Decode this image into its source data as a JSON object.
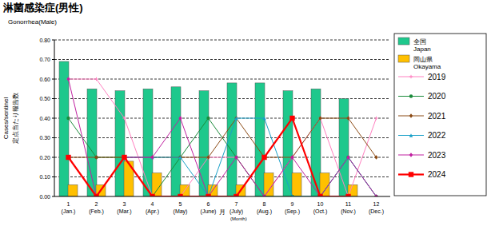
{
  "chart_data": {
    "type": "bar",
    "title": "淋菌感染症(男性)",
    "subtitle": "Gonorrhea(Male)",
    "y_label": [
      "Cases/sentinel",
      "定点当たり報告数"
    ],
    "x_label": "月\n(Month)",
    "categories": [
      "1\n(Jan.)",
      "2\n(Feb.)",
      "3\n(Mar.)",
      "4\n(Apr.)",
      "5\n(May)",
      "6\n(June)",
      "7\n(July)",
      "8\n(Aug.)",
      "9\n(Sep.)",
      "10\n(Oct.)",
      "11\n(Nov.)",
      "12\n(Dec.)"
    ],
    "ylim": [
      0,
      0.8
    ],
    "yticks": [
      {
        "value": 0,
        "label": "0.00"
      },
      {
        "value": 0.1,
        "label": "0.10"
      },
      {
        "value": 0.2,
        "label": "0.20"
      },
      {
        "value": 0.3,
        "label": "0.30"
      },
      {
        "value": 0.4,
        "label": "0.40"
      },
      {
        "value": 0.5,
        "label": "0.50"
      },
      {
        "value": 0.6,
        "label": "0.60"
      },
      {
        "value": 0.7,
        "label": "0.70"
      },
      {
        "value": 0.8,
        "label": "0.80"
      }
    ],
    "grid": true,
    "legend": "right",
    "series": [
      {
        "name": "全国\nJapan",
        "type": "bar",
        "color": "#1ec88c",
        "values": [
          0.69,
          0.55,
          0.54,
          0.55,
          0.56,
          0.54,
          0.58,
          0.58,
          0.54,
          0.55,
          0.5,
          null
        ]
      },
      {
        "name": "岡山県\nOkayama",
        "type": "bar",
        "color": "#ffc000",
        "values": [
          0.06,
          0.06,
          0.18,
          0.12,
          0.06,
          0.06,
          0.06,
          0.12,
          0.12,
          0.12,
          0.06,
          null
        ]
      },
      {
        "name": "2019",
        "type": "line",
        "color": "#ff80c0",
        "marker": "plus",
        "values": [
          0.6,
          0.6,
          0.4,
          0.0,
          0.0,
          0.2,
          0.2,
          0.0,
          0.2,
          0.4,
          0.0,
          0.4
        ]
      },
      {
        "name": "2020",
        "type": "line",
        "color": "#1a8a3a",
        "marker": "circle",
        "values": [
          0.4,
          0.2,
          0.2,
          0.0,
          0.2,
          0.4,
          0.2,
          0.0,
          0.0,
          0.0,
          0.2,
          0.0
        ]
      },
      {
        "name": "2021",
        "type": "line",
        "color": "#8b4a14",
        "marker": "diamond",
        "values": [
          0.2,
          0.2,
          0.2,
          0.2,
          0.2,
          0.2,
          0.4,
          0.2,
          0.2,
          0.4,
          0.4,
          0.2
        ]
      },
      {
        "name": "2022",
        "type": "line",
        "color": "#1aa0c8",
        "marker": "triangle",
        "values": [
          0.2,
          0.0,
          0.2,
          0.2,
          0.2,
          0.0,
          0.4,
          0.4,
          0.0,
          0.0,
          0.2,
          0.0
        ]
      },
      {
        "name": "2023",
        "type": "line",
        "color": "#c020a0",
        "marker": "diamond",
        "values": [
          0.6,
          0.0,
          0.2,
          0.2,
          0.4,
          0.0,
          0.2,
          0.0,
          0.2,
          0.0,
          0.2,
          0.0
        ]
      },
      {
        "name": "2024",
        "type": "line",
        "color": "#ff0000",
        "marker": "square",
        "values": [
          0.2,
          0.0,
          0.2,
          0.0,
          0.0,
          0.0,
          0.0,
          0.2,
          0.4,
          0.0,
          0.0,
          null
        ]
      }
    ]
  }
}
